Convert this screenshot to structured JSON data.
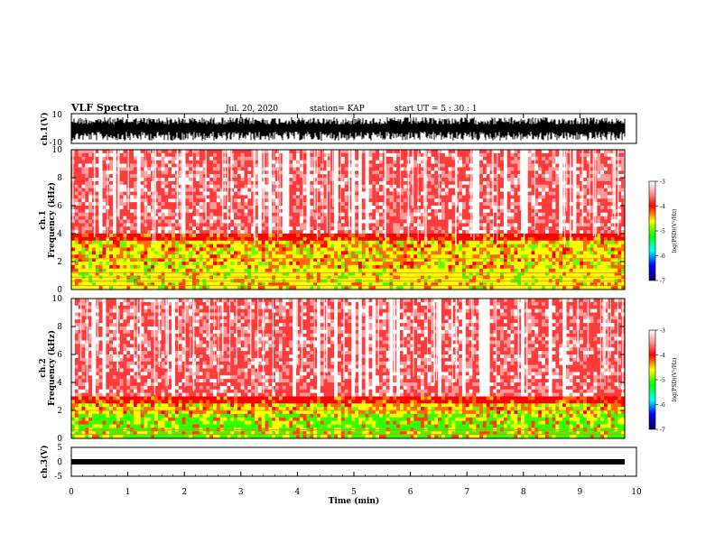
{
  "header": {
    "title": "VLF Spectra",
    "date": "Jul. 20, 2020",
    "station": "station= KAP",
    "start_ut": "start UT =  5 : 30 : 1"
  },
  "chart_data": [
    {
      "type": "line",
      "panel": "ch1_waveform",
      "ylabel": "ch.1(V)",
      "ylim": [
        -10,
        10
      ],
      "ytick_labels": [
        "-10",
        "10"
      ],
      "xlim": [
        0,
        10
      ],
      "description_series": "dense waveform, black"
    },
    {
      "type": "heatmap",
      "panel": "ch1_spectrogram",
      "ylabel": "ch.1 Frequency (kHz)",
      "ylim": [
        0,
        10
      ],
      "ytick_labels": [
        "0",
        "2",
        "4",
        "6",
        "8",
        "10"
      ],
      "xlim": [
        0,
        10
      ],
      "colorbar": {
        "label": "log(PSD)(V²/Hz)",
        "range": [
          -7,
          -3
        ],
        "tick_labels": [
          "-3",
          "-4",
          "-5",
          "-6",
          "-7"
        ]
      }
    },
    {
      "type": "heatmap",
      "panel": "ch2_spectrogram",
      "ylabel": "ch.2 Frequency (kHz)",
      "ylim": [
        0,
        10
      ],
      "ytick_labels": [
        "0",
        "2",
        "4",
        "6",
        "8",
        "10"
      ],
      "xlim": [
        0,
        10
      ],
      "colorbar": {
        "label": "log(PSD)(V²/Hz)",
        "range": [
          -7,
          -3
        ],
        "tick_labels": [
          "-3",
          "-4",
          "-5",
          "-6",
          "-7"
        ]
      }
    },
    {
      "type": "line",
      "panel": "ch3_waveform",
      "ylabel": "ch.3(V)",
      "ylim": [
        -5,
        5
      ],
      "ytick_labels": [
        "-5",
        "0",
        "5"
      ],
      "xlim": [
        0,
        10
      ],
      "xlabel": "Time (min)",
      "xtick_labels": [
        "0",
        "1",
        "2",
        "3",
        "4",
        "5",
        "6",
        "7",
        "8",
        "9",
        "10"
      ]
    }
  ],
  "colors": {
    "waveform": "#000000",
    "spec_high": "#ff0000",
    "spec_mid": "#ffff00",
    "spec_low": "#00ff00",
    "background": "#ffffff"
  }
}
